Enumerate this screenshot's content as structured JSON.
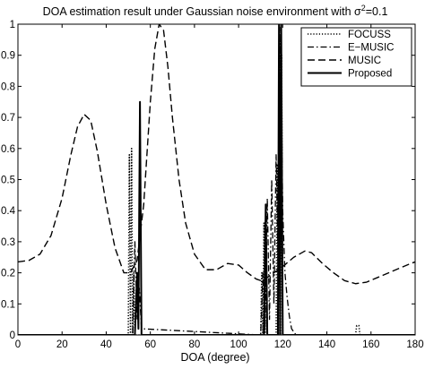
{
  "chart_data": {
    "type": "line",
    "title": "DOA estimation result under Gaussian noise environment with σ²=0.1",
    "title_main": "DOA estimation result under Gaussian noise environment with σ",
    "title_sup": "2",
    "title_tail": "=0.1",
    "xlabel": "DOA (degree)",
    "ylabel": "",
    "xlim": [
      0,
      180
    ],
    "ylim": [
      0,
      1
    ],
    "xticks": [
      0,
      20,
      40,
      60,
      80,
      100,
      120,
      140,
      160,
      180
    ],
    "xtick_labels": [
      "0",
      "20",
      "40",
      "60",
      "80",
      "100",
      "120",
      "140",
      "160",
      "180"
    ],
    "yticks": [
      0,
      0.1,
      0.2,
      0.3,
      0.4,
      0.5,
      0.6,
      0.7,
      0.8,
      0.9,
      1
    ],
    "ytick_labels": [
      "0",
      "0.1",
      "0.2",
      "0.3",
      "0.4",
      "0.5",
      "0.6",
      "0.7",
      "0.8",
      "0.9",
      "1"
    ],
    "grid": false,
    "legend_position": "top-right",
    "series": [
      {
        "name": "FOCUSS",
        "style": "dotted",
        "points": [
          [
            0,
            0
          ],
          [
            50,
            0
          ],
          [
            50.5,
            0.58
          ],
          [
            51,
            0
          ],
          [
            51.5,
            0.6
          ],
          [
            52,
            0
          ],
          [
            52.5,
            0.2
          ],
          [
            53,
            0
          ],
          [
            110,
            0
          ],
          [
            110.5,
            0.2
          ],
          [
            111,
            0
          ],
          [
            111.5,
            0.36
          ],
          [
            112,
            0
          ],
          [
            112.5,
            0.3
          ],
          [
            113,
            0
          ],
          [
            117,
            0
          ],
          [
            117.5,
            0.55
          ],
          [
            118,
            0
          ],
          [
            118.5,
            0.95
          ],
          [
            119,
            0
          ],
          [
            119.5,
            0.9
          ],
          [
            120,
            0
          ],
          [
            153,
            0
          ],
          [
            153.5,
            0.03
          ],
          [
            154.5,
            0.03
          ],
          [
            155,
            0
          ],
          [
            180,
            0
          ]
        ]
      },
      {
        "name": "E−MUSIC",
        "style": "dashdot",
        "points": [
          [
            0,
            0
          ],
          [
            52,
            0
          ],
          [
            53,
            0.3
          ],
          [
            54,
            0.05
          ],
          [
            55,
            0.15
          ],
          [
            56,
            0.02
          ],
          [
            110,
            0
          ],
          [
            111,
            0.2
          ],
          [
            112,
            0.02
          ],
          [
            113,
            0.44
          ],
          [
            114,
            0.05
          ],
          [
            115,
            0.5
          ],
          [
            116,
            0.1
          ],
          [
            117,
            0.58
          ],
          [
            118,
            0.2
          ],
          [
            119,
            0.99
          ],
          [
            120,
            0.4
          ],
          [
            121,
            0.2
          ],
          [
            122,
            0.12
          ],
          [
            123,
            0.06
          ],
          [
            124,
            0.02
          ],
          [
            126,
            0
          ],
          [
            180,
            0
          ]
        ]
      },
      {
        "name": "MUSIC",
        "style": "dashed",
        "points": [
          [
            0,
            0.235
          ],
          [
            5,
            0.24
          ],
          [
            10,
            0.26
          ],
          [
            15,
            0.32
          ],
          [
            20,
            0.44
          ],
          [
            24,
            0.58
          ],
          [
            27,
            0.67
          ],
          [
            30,
            0.71
          ],
          [
            33,
            0.69
          ],
          [
            36,
            0.59
          ],
          [
            40,
            0.42
          ],
          [
            44,
            0.28
          ],
          [
            48,
            0.2
          ],
          [
            51,
            0.2
          ],
          [
            54,
            0.24
          ],
          [
            57,
            0.42
          ],
          [
            60,
            0.75
          ],
          [
            62,
            0.92
          ],
          [
            64,
            1.0
          ],
          [
            66,
            0.98
          ],
          [
            68,
            0.86
          ],
          [
            70,
            0.7
          ],
          [
            73,
            0.5
          ],
          [
            76,
            0.36
          ],
          [
            80,
            0.26
          ],
          [
            85,
            0.21
          ],
          [
            90,
            0.21
          ],
          [
            95,
            0.23
          ],
          [
            100,
            0.225
          ],
          [
            104,
            0.2
          ],
          [
            108,
            0.18
          ],
          [
            110,
            0.175
          ],
          [
            112,
            0.18
          ],
          [
            114,
            0.19
          ],
          [
            116,
            0.2
          ],
          [
            118,
            0.21
          ],
          [
            120,
            0.22
          ],
          [
            125,
            0.25
          ],
          [
            130,
            0.27
          ],
          [
            133,
            0.265
          ],
          [
            138,
            0.23
          ],
          [
            143,
            0.2
          ],
          [
            148,
            0.175
          ],
          [
            153,
            0.165
          ],
          [
            158,
            0.17
          ],
          [
            163,
            0.185
          ],
          [
            168,
            0.2
          ],
          [
            173,
            0.215
          ],
          [
            178,
            0.23
          ],
          [
            180,
            0.235
          ]
        ]
      },
      {
        "name": "Proposed",
        "style": "solid",
        "points": [
          [
            0,
            0
          ],
          [
            53,
            0
          ],
          [
            54,
            0.2
          ],
          [
            54.6,
            0.02
          ],
          [
            55.3,
            0.75
          ],
          [
            56,
            0
          ],
          [
            111.5,
            0
          ],
          [
            112.3,
            0.42
          ],
          [
            113,
            0
          ],
          [
            117.8,
            0
          ],
          [
            118.3,
            1.0
          ],
          [
            118.8,
            0
          ],
          [
            119.3,
            1.0
          ],
          [
            120,
            0
          ],
          [
            180,
            0
          ]
        ]
      }
    ]
  }
}
